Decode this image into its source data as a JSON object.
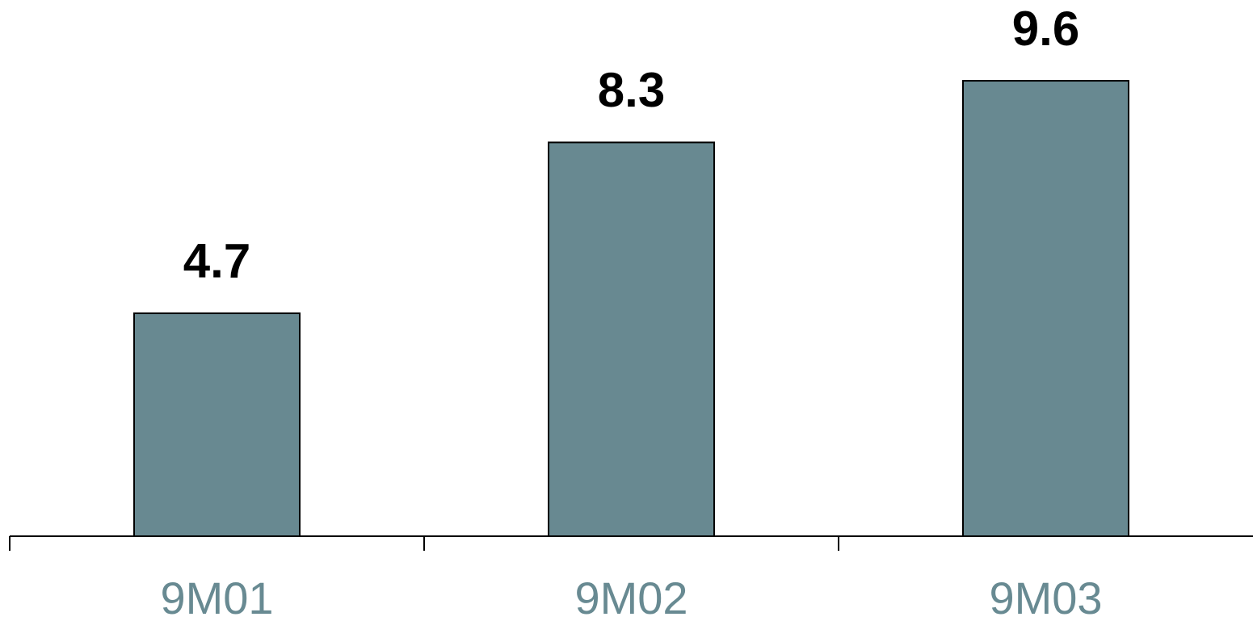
{
  "chart_data": {
    "type": "bar",
    "categories": [
      "9M01",
      "9M02",
      "9M03"
    ],
    "values": [
      4.7,
      8.3,
      9.6
    ],
    "color": "#688991"
  }
}
